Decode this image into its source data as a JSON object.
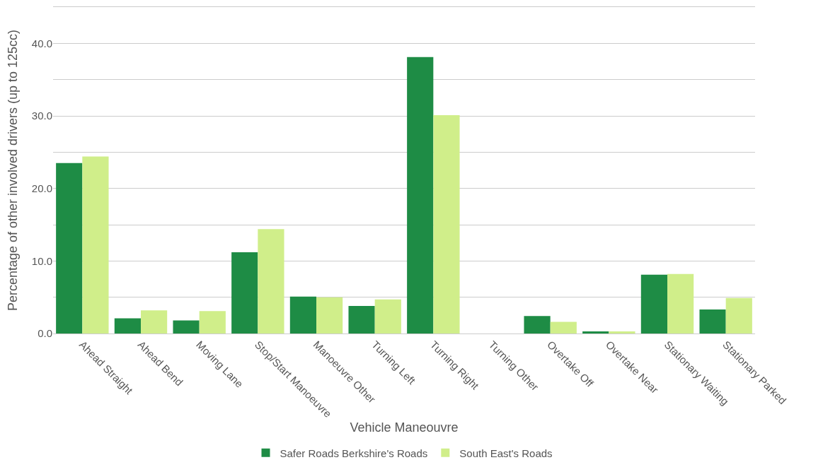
{
  "chart_data": {
    "type": "bar",
    "xlabel": "Vehicle Maneouvre",
    "ylabel": "Percentage of other involved drivers (up to 125cc)",
    "categories": [
      "Ahead Straight",
      "Ahead Bend",
      "Moving Lane",
      "Stop/Start Manoeuvre",
      "Manoeuvre Other",
      "Turning Left",
      "Turning Right",
      "Turning Other",
      "Overtake Off",
      "Overtake Near",
      "Stationary Waiting",
      "Stationary Parked"
    ],
    "series": [
      {
        "name": "Safer Roads Berkshire's Roads",
        "color": "#1e8c45",
        "values": [
          23.5,
          2.1,
          1.8,
          11.2,
          5.1,
          3.8,
          38.1,
          0,
          2.4,
          0.3,
          8.1,
          3.3
        ]
      },
      {
        "name": "South East's Roads",
        "color": "#d0ee8a",
        "values": [
          24.4,
          3.2,
          3.1,
          14.4,
          5.0,
          4.7,
          30.1,
          0,
          1.6,
          0.3,
          8.2,
          4.9
        ]
      }
    ],
    "ylim": [
      0,
      45
    ],
    "yticks": [
      {
        "value": 0,
        "label": "0.0"
      },
      {
        "value": 5,
        "label": null
      },
      {
        "value": 10,
        "label": "10.0"
      },
      {
        "value": 15,
        "label": null
      },
      {
        "value": 20,
        "label": "20.0"
      },
      {
        "value": 25,
        "label": null
      },
      {
        "value": 30,
        "label": "30.0"
      },
      {
        "value": 35,
        "label": null
      },
      {
        "value": 40,
        "label": "40.0"
      },
      {
        "value": 45,
        "label": null
      }
    ],
    "grid": "y",
    "legend": "bottom"
  }
}
